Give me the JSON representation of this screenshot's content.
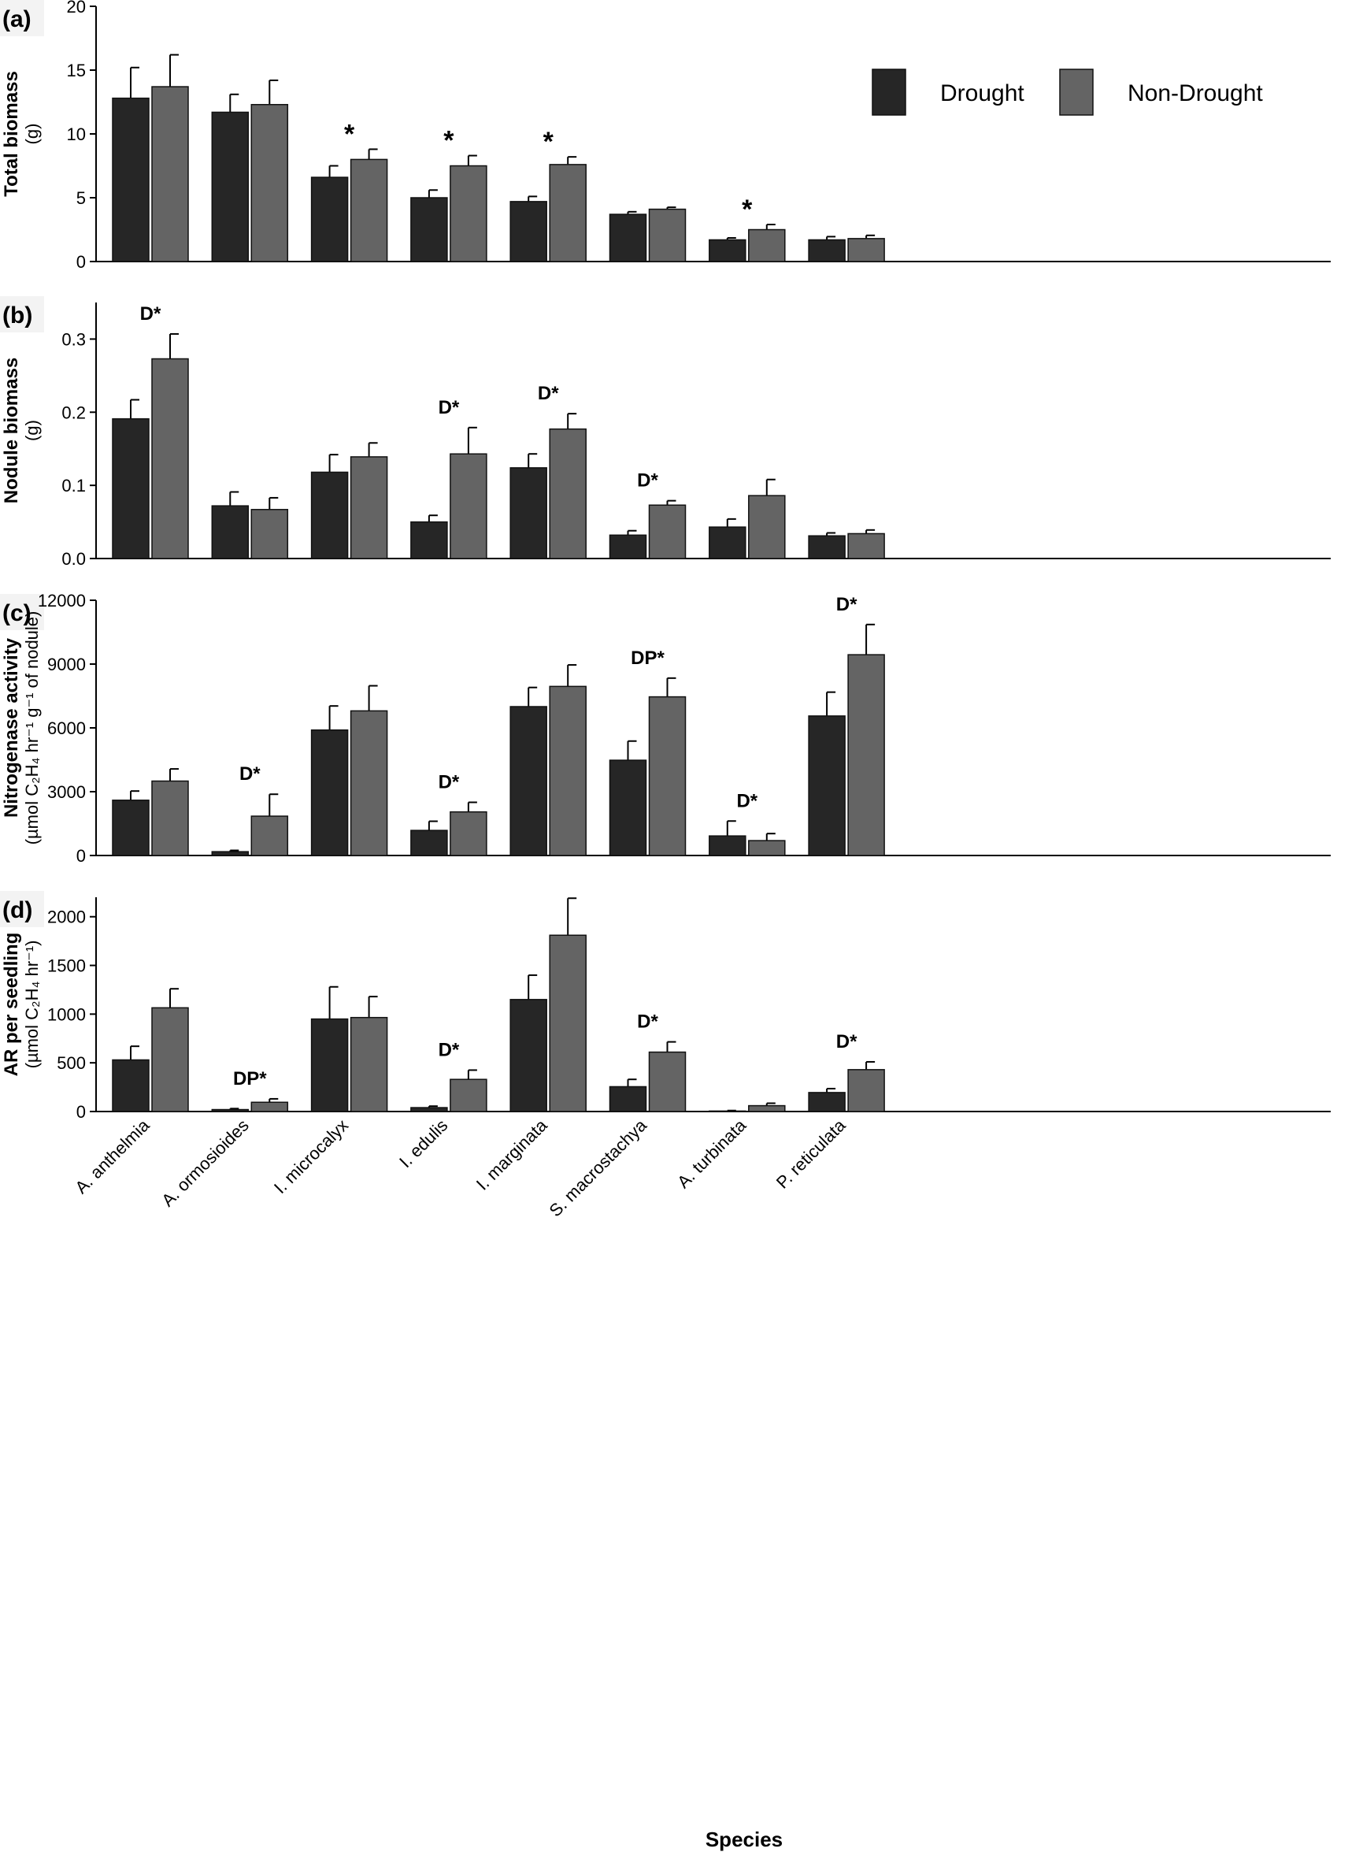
{
  "colors": {
    "drought": "#262626",
    "non_drought": "#646464",
    "axis": "#000000",
    "label_bg": "#f3f3f3"
  },
  "legend": {
    "items": [
      "Drought",
      "Non-Drought"
    ],
    "position": "top-right of panel (a)"
  },
  "x_axis_title": "Species",
  "chart_data": [
    {
      "panel": "(a)",
      "type": "bar",
      "ylabel_line1": "Total biomass",
      "ylabel_line2": "(g)",
      "ylim": [
        0,
        20
      ],
      "yticks": [
        0,
        5,
        10,
        15,
        20
      ],
      "categories": [
        "A. anthelmia",
        "A. ormosioides",
        "I. microcalyx",
        "I. edulis",
        "I. marginata",
        "S. macrostachya",
        "A. turbinata",
        "P. reticulata"
      ],
      "series": [
        {
          "name": "Drought",
          "values": [
            12.8,
            11.7,
            6.6,
            5.0,
            4.7,
            3.7,
            1.7,
            1.7
          ],
          "errors": [
            2.4,
            1.4,
            0.9,
            0.6,
            0.4,
            0.2,
            0.15,
            0.25
          ]
        },
        {
          "name": "Non-Drought",
          "values": [
            13.7,
            12.3,
            8.0,
            7.5,
            7.6,
            4.1,
            2.5,
            1.8
          ],
          "errors": [
            2.5,
            1.9,
            0.8,
            0.8,
            0.6,
            0.15,
            0.4,
            0.25
          ]
        }
      ],
      "annotations": [
        "",
        "",
        "*",
        "*",
        "*",
        "",
        "*",
        ""
      ]
    },
    {
      "panel": "(b)",
      "type": "bar",
      "ylabel_line1": "Nodule biomass",
      "ylabel_line2": "(g)",
      "ylim": [
        0,
        0.35
      ],
      "yticks": [
        0.0,
        0.1,
        0.2,
        0.3
      ],
      "ytick_labels": [
        "0.0",
        "0.1",
        "0.2",
        "0.3"
      ],
      "categories": [
        "A. anthelmia",
        "A. ormosioides",
        "I. microcalyx",
        "I. edulis",
        "I. marginata",
        "S. macrostachya",
        "A. turbinata",
        "P. reticulata"
      ],
      "series": [
        {
          "name": "Drought",
          "values": [
            0.191,
            0.072,
            0.118,
            0.05,
            0.124,
            0.032,
            0.043,
            0.031
          ],
          "errors": [
            0.026,
            0.019,
            0.024,
            0.009,
            0.019,
            0.006,
            0.011,
            0.004
          ]
        },
        {
          "name": "Non-Drought",
          "values": [
            0.273,
            0.067,
            0.139,
            0.143,
            0.177,
            0.073,
            0.086,
            0.034
          ],
          "errors": [
            0.034,
            0.016,
            0.019,
            0.036,
            0.021,
            0.006,
            0.022,
            0.005
          ]
        }
      ],
      "annotations": [
        "D*",
        "",
        "",
        "D*",
        "D*",
        "D*",
        "",
        ""
      ]
    },
    {
      "panel": "(c)",
      "type": "bar",
      "ylabel_line1": "Nitrogenase activity",
      "ylabel_line2": "(µmol C₂H₄ hr⁻¹ g⁻¹ of nodule)",
      "ylim": [
        0,
        12000
      ],
      "yticks": [
        0,
        3000,
        6000,
        9000,
        12000
      ],
      "categories": [
        "A. anthelmia",
        "A. ormosioides",
        "I. microcalyx",
        "I. edulis",
        "I. marginata",
        "S. macrostachya",
        "A. turbinata",
        "P. reticulata"
      ],
      "series": [
        {
          "name": "Drought",
          "values": [
            2600,
            180,
            5900,
            1180,
            7000,
            4480,
            920,
            6560
          ],
          "errors": [
            430,
            60,
            1130,
            430,
            900,
            900,
            700,
            1120
          ]
        },
        {
          "name": "Non-Drought",
          "values": [
            3500,
            1850,
            6800,
            2050,
            7950,
            7460,
            700,
            9440
          ],
          "errors": [
            570,
            1030,
            1180,
            450,
            1010,
            880,
            330,
            1420
          ]
        }
      ],
      "annotations": [
        "",
        "D*",
        "",
        "D*",
        "",
        "DP*",
        "D*",
        "D*"
      ]
    },
    {
      "panel": "(d)",
      "type": "bar",
      "ylabel_line1": "AR per seedling",
      "ylabel_line2": "(µmol C₂H₄ hr⁻¹)",
      "ylim": [
        0,
        2200
      ],
      "yticks": [
        0,
        500,
        1000,
        1500,
        2000
      ],
      "categories": [
        "A. anthelmia",
        "A. ormosioides",
        "I. microcalyx",
        "I. edulis",
        "I. marginata",
        "S. macrostachya",
        "A. turbinata",
        "P. reticulata"
      ],
      "series": [
        {
          "name": "Drought",
          "values": [
            530,
            20,
            950,
            40,
            1150,
            255,
            5,
            195
          ],
          "errors": [
            140,
            10,
            330,
            15,
            250,
            75,
            5,
            40
          ]
        },
        {
          "name": "Non-Drought",
          "values": [
            1065,
            95,
            965,
            330,
            1810,
            610,
            60,
            430
          ],
          "errors": [
            195,
            35,
            215,
            95,
            380,
            105,
            25,
            80
          ]
        }
      ],
      "annotations": [
        "",
        "DP*",
        "",
        "D*",
        "",
        "D*",
        "",
        "D*"
      ]
    }
  ]
}
